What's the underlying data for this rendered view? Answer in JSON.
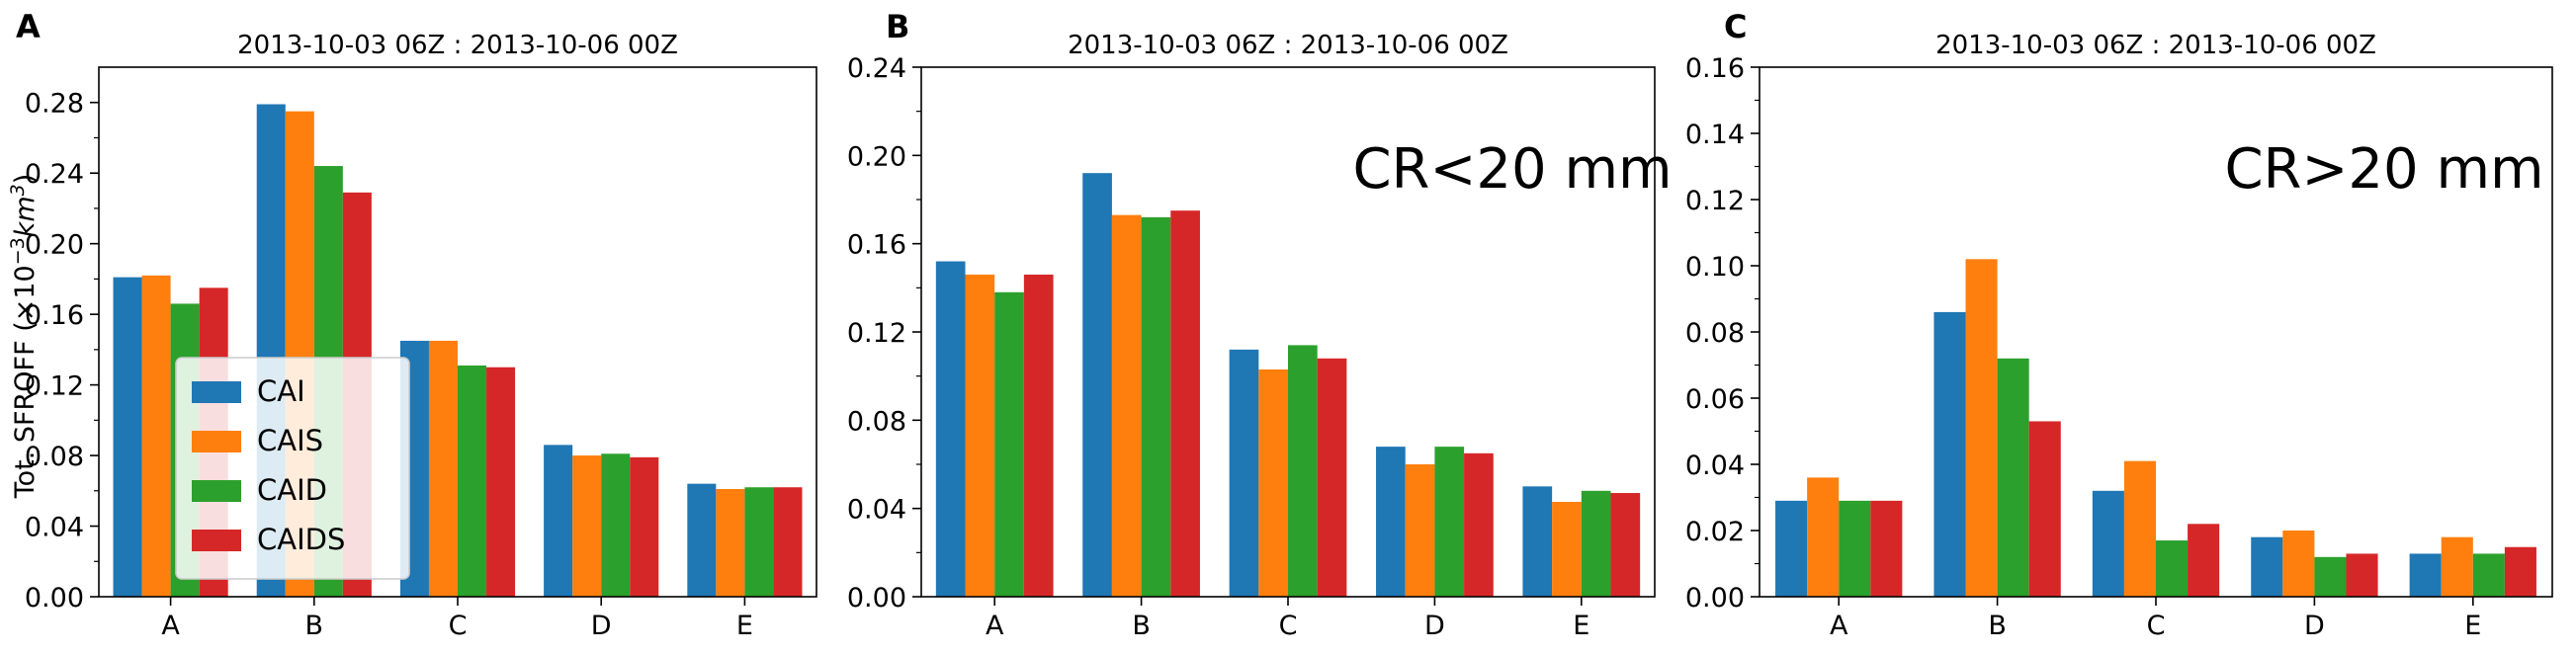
{
  "figure": {
    "ylabel": "Tot. SFROFF (×10",
    "ylabel_sup": "−3",
    "ylabel_unit": "km",
    "ylabel_unit_sup": "3",
    "ylabel_close": ")"
  },
  "series_colors": [
    "#1f77b4",
    "#ff7f0e",
    "#2ca02c",
    "#d62728"
  ],
  "legend": {
    "placement": "lower-left",
    "panel": 0,
    "entries": [
      "CAI",
      "CAIS",
      "CAID",
      "CAIDS"
    ]
  },
  "chart_data": [
    {
      "type": "bar",
      "panel_label": "A",
      "title": "2013-10-03 06Z : 2013-10-06 00Z",
      "annotation": "",
      "categories": [
        "A",
        "B",
        "C",
        "D",
        "E"
      ],
      "ylim": [
        0,
        0.3
      ],
      "yticks": [
        "0.00",
        "0.04",
        "0.08",
        "0.12",
        "0.16",
        "0.20",
        "0.24",
        "0.28"
      ],
      "series": [
        {
          "name": "CAI",
          "values": [
            0.181,
            0.279,
            0.145,
            0.086,
            0.064
          ]
        },
        {
          "name": "CAIS",
          "values": [
            0.182,
            0.275,
            0.145,
            0.08,
            0.061
          ]
        },
        {
          "name": "CAID",
          "values": [
            0.166,
            0.244,
            0.131,
            0.081,
            0.062
          ]
        },
        {
          "name": "CAIDS",
          "values": [
            0.175,
            0.229,
            0.13,
            0.079,
            0.062
          ]
        }
      ]
    },
    {
      "type": "bar",
      "panel_label": "B",
      "title": "2013-10-03 06Z : 2013-10-06 00Z",
      "annotation": "CR<20 mm",
      "categories": [
        "A",
        "B",
        "C",
        "D",
        "E"
      ],
      "ylim": [
        0,
        0.24
      ],
      "yticks": [
        "0.00",
        "0.04",
        "0.08",
        "0.12",
        "0.16",
        "0.20",
        "0.24"
      ],
      "series": [
        {
          "name": "CAI",
          "values": [
            0.152,
            0.192,
            0.112,
            0.068,
            0.05
          ]
        },
        {
          "name": "CAIS",
          "values": [
            0.146,
            0.173,
            0.103,
            0.06,
            0.043
          ]
        },
        {
          "name": "CAID",
          "values": [
            0.138,
            0.172,
            0.114,
            0.068,
            0.048
          ]
        },
        {
          "name": "CAIDS",
          "values": [
            0.146,
            0.175,
            0.108,
            0.065,
            0.047
          ]
        }
      ]
    },
    {
      "type": "bar",
      "panel_label": "C",
      "title": "2013-10-03 06Z : 2013-10-06 00Z",
      "annotation": "CR>20 mm",
      "categories": [
        "A",
        "B",
        "C",
        "D",
        "E"
      ],
      "ylim": [
        0,
        0.16
      ],
      "yticks": [
        "0.00",
        "0.02",
        "0.04",
        "0.06",
        "0.08",
        "0.10",
        "0.12",
        "0.14",
        "0.16"
      ],
      "series": [
        {
          "name": "CAI",
          "values": [
            0.029,
            0.086,
            0.032,
            0.018,
            0.013
          ]
        },
        {
          "name": "CAIS",
          "values": [
            0.036,
            0.102,
            0.041,
            0.02,
            0.018
          ]
        },
        {
          "name": "CAID",
          "values": [
            0.029,
            0.072,
            0.017,
            0.012,
            0.013
          ]
        },
        {
          "name": "CAIDS",
          "values": [
            0.029,
            0.053,
            0.022,
            0.013,
            0.015
          ]
        }
      ]
    }
  ]
}
